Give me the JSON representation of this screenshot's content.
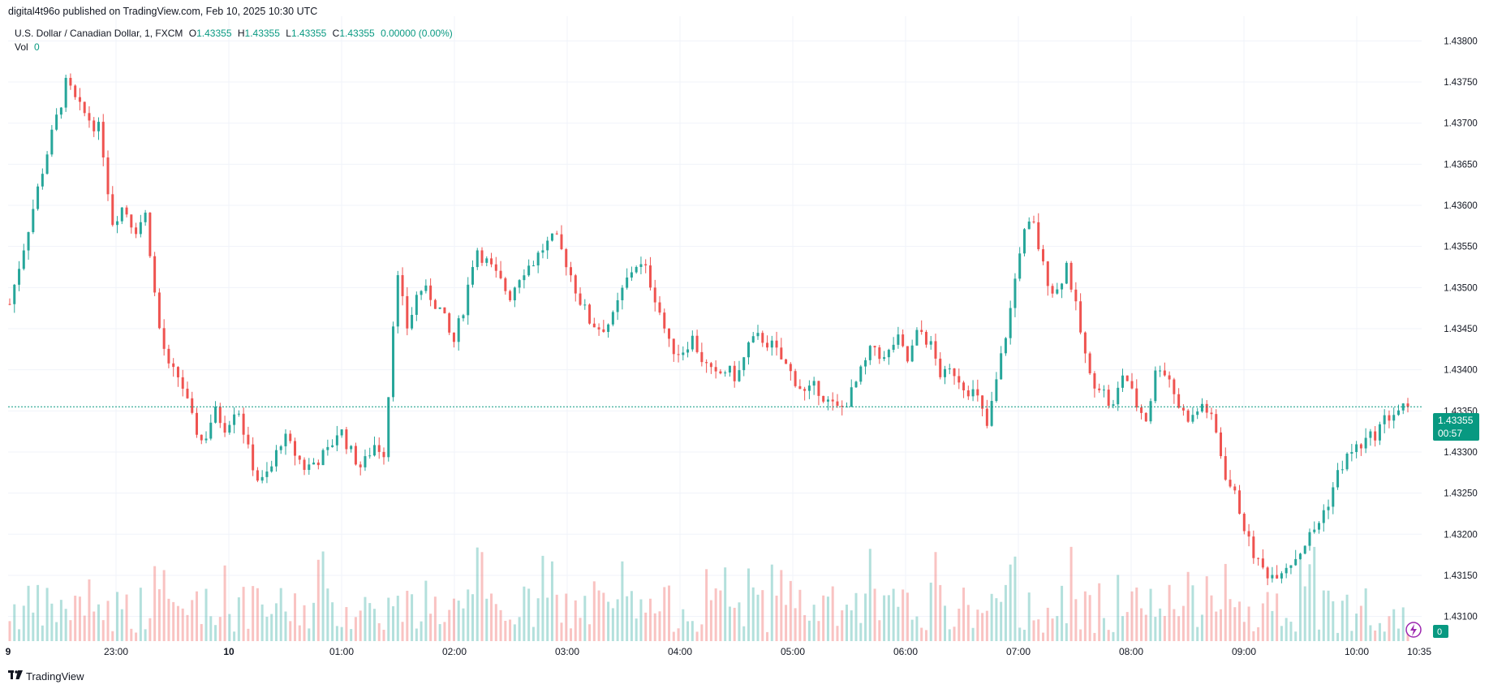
{
  "header": {
    "publisher": "digital4t96o published on TradingView.com, Feb 10, 2025 10:30 UTC"
  },
  "legend": {
    "symbol": "U.S. Dollar / Canadian Dollar, 1, FXCM",
    "o_label": "O",
    "o_value": "1.43355",
    "h_label": "H",
    "h_value": "1.43355",
    "l_label": "L",
    "l_value": "1.43355",
    "c_label": "C",
    "c_value": "1.43355",
    "change": "0.00000 (0.00%)",
    "vol_label": "Vol",
    "vol_value": "0"
  },
  "price_tag": {
    "price": "1.43355",
    "countdown": "00:57"
  },
  "volume_tag": "0",
  "footer": {
    "brand": "TradingView"
  },
  "colors": {
    "up": "#26a69a",
    "down": "#ef5350",
    "tag": "#089981",
    "grid": "#f0f3fa"
  },
  "chart_data": {
    "type": "candlestick",
    "symbol": "USDCAD",
    "interval": "1m",
    "ylim": [
      1.4307,
      1.4383
    ],
    "y_ticks": [
      "1.43800",
      "1.43750",
      "1.43700",
      "1.43650",
      "1.43600",
      "1.43550",
      "1.43500",
      "1.43450",
      "1.43400",
      "1.43350",
      "1.43300",
      "1.43250",
      "1.43200",
      "1.43150",
      "1.43100"
    ],
    "x_ticks": [
      "9",
      "23:00",
      "10",
      "01:00",
      "02:00",
      "03:00",
      "04:00",
      "05:00",
      "06:00",
      "07:00",
      "08:00",
      "09:00",
      "10:00",
      "10:35"
    ],
    "last_price": 1.43355,
    "close_path": [
      [
        0,
        1.4348
      ],
      [
        3,
        1.4365
      ],
      [
        5,
        1.4375
      ],
      [
        6,
        1.4372
      ],
      [
        8,
        1.4369
      ],
      [
        9,
        1.4358
      ],
      [
        10,
        1.436
      ],
      [
        11,
        1.4357
      ],
      [
        12,
        1.4359
      ],
      [
        13,
        1.4346
      ],
      [
        14,
        1.434
      ],
      [
        15,
        1.4339
      ],
      [
        16,
        1.4334
      ],
      [
        17,
        1.4331
      ],
      [
        18,
        1.4335
      ],
      [
        19,
        1.4333
      ],
      [
        20,
        1.4336
      ],
      [
        21,
        1.433
      ],
      [
        22,
        1.4326
      ],
      [
        23,
        1.4328
      ],
      [
        24,
        1.4332
      ],
      [
        26,
        1.4328
      ],
      [
        28,
        1.433
      ],
      [
        29,
        1.4333
      ],
      [
        30,
        1.433
      ],
      [
        31,
        1.4328
      ],
      [
        32,
        1.4331
      ],
      [
        33,
        1.433
      ],
      [
        34,
        1.4352
      ],
      [
        35,
        1.4345
      ],
      [
        36,
        1.435
      ],
      [
        37,
        1.4349
      ],
      [
        38,
        1.4347
      ],
      [
        39,
        1.4343
      ],
      [
        40,
        1.4348
      ],
      [
        41,
        1.4355
      ],
      [
        42,
        1.4353
      ],
      [
        43,
        1.4351
      ],
      [
        44,
        1.4349
      ],
      [
        45,
        1.4352
      ],
      [
        46,
        1.4353
      ],
      [
        47,
        1.4355
      ],
      [
        48,
        1.4356
      ],
      [
        49,
        1.4353
      ],
      [
        50,
        1.4349
      ],
      [
        51,
        1.4346
      ],
      [
        52,
        1.4345
      ],
      [
        53,
        1.4346
      ],
      [
        54,
        1.435
      ],
      [
        55,
        1.4353
      ],
      [
        56,
        1.4352
      ],
      [
        57,
        1.4348
      ],
      [
        58,
        1.4343
      ],
      [
        59,
        1.4342
      ],
      [
        60,
        1.4344
      ],
      [
        61,
        1.4341
      ],
      [
        62,
        1.4339
      ],
      [
        63,
        1.434
      ],
      [
        64,
        1.4339
      ],
      [
        65,
        1.4343
      ],
      [
        66,
        1.4344
      ],
      [
        67,
        1.4343
      ],
      [
        68,
        1.4341
      ],
      [
        69,
        1.4339
      ],
      [
        70,
        1.4337
      ],
      [
        71,
        1.4338
      ],
      [
        72,
        1.4336
      ],
      [
        73,
        1.4335
      ],
      [
        74,
        1.4337
      ],
      [
        75,
        1.434
      ],
      [
        76,
        1.4343
      ],
      [
        77,
        1.4341
      ],
      [
        78,
        1.4344
      ],
      [
        79,
        1.4341
      ],
      [
        80,
        1.4345
      ],
      [
        81,
        1.4343
      ],
      [
        82,
        1.4339
      ],
      [
        83,
        1.434
      ],
      [
        84,
        1.4338
      ],
      [
        85,
        1.4337
      ],
      [
        86,
        1.4333
      ],
      [
        87,
        1.434
      ],
      [
        88,
        1.4347
      ],
      [
        89,
        1.4356
      ],
      [
        90,
        1.4358
      ],
      [
        91,
        1.4352
      ],
      [
        92,
        1.4349
      ],
      [
        93,
        1.4353
      ],
      [
        94,
        1.4346
      ],
      [
        95,
        1.4339
      ],
      [
        96,
        1.4338
      ],
      [
        97,
        1.4335
      ],
      [
        98,
        1.434
      ],
      [
        99,
        1.4336
      ],
      [
        100,
        1.4334
      ],
      [
        101,
        1.4341
      ],
      [
        102,
        1.4339
      ],
      [
        103,
        1.4335
      ],
      [
        104,
        1.4334
      ],
      [
        105,
        1.4336
      ],
      [
        106,
        1.4333
      ],
      [
        107,
        1.4327
      ],
      [
        108,
        1.4324
      ],
      [
        109,
        1.4319
      ],
      [
        110,
        1.4316
      ],
      [
        111,
        1.4315
      ],
      [
        112,
        1.4316
      ],
      [
        113,
        1.4317
      ],
      [
        114,
        1.4319
      ],
      [
        115,
        1.4321
      ],
      [
        116,
        1.4324
      ],
      [
        117,
        1.4328
      ],
      [
        118,
        1.433
      ],
      [
        119,
        1.4331
      ],
      [
        120,
        1.4332
      ],
      [
        121,
        1.4334
      ],
      [
        122,
        1.4335
      ],
      [
        123,
        1.43355
      ]
    ]
  }
}
